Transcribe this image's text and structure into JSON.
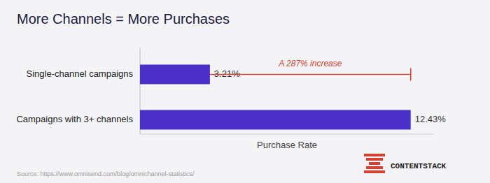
{
  "chart_data": {
    "type": "bar",
    "orientation": "horizontal",
    "title": "More Channels = More Purchases",
    "categories": [
      "Single-channel campaigns",
      "Campaigns with 3+ channels"
    ],
    "values": [
      3.21,
      12.43
    ],
    "value_labels": [
      "3.21%",
      "12.43%"
    ],
    "data_labels": true,
    "color": "#4B2FC9",
    "xlabel": "Purchase Rate",
    "xlim": [
      0,
      13.5
    ],
    "xticks": [],
    "tick_labels": false,
    "grid": false,
    "annotations": [
      {
        "text": "A 287% increase",
        "color": "#D44030"
      }
    ],
    "source": "Source: https://www.omnisend.com/blog/omnichannel-statistics/",
    "logo": "CONTENTSTACK"
  }
}
